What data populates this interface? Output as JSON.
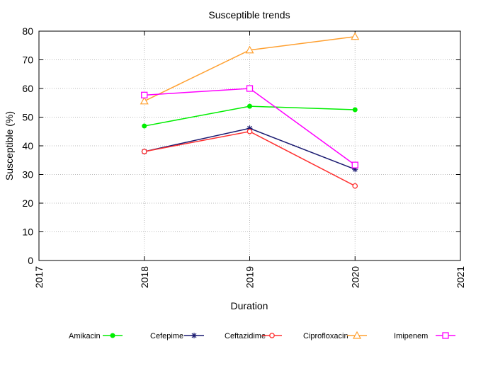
{
  "chart_data": {
    "type": "line",
    "title": "Susceptible trends",
    "xlabel": "Duration",
    "ylabel": "Susceptible (%)",
    "xlim": [
      2017,
      2021
    ],
    "ylim": [
      0,
      80
    ],
    "xticks": [
      "2017",
      "2018",
      "2019",
      "2020",
      "2021"
    ],
    "yticks": [
      "0",
      "10",
      "20",
      "30",
      "40",
      "50",
      "60",
      "70",
      "80"
    ],
    "grid": true,
    "legend_position": "bottom",
    "x": [
      2018,
      2019,
      2020
    ],
    "series": [
      {
        "name": "Amikacin",
        "values": [
          46.9,
          53.8,
          52.6
        ],
        "color": "#00ee00",
        "marker": "filled-circle"
      },
      {
        "name": "Cefepime",
        "values": [
          38.0,
          46.1,
          31.8
        ],
        "color": "#191970",
        "marker": "star"
      },
      {
        "name": "Ceftazidime",
        "values": [
          38.0,
          45.0,
          26.0
        ],
        "color": "#ff3030",
        "marker": "open-circle"
      },
      {
        "name": "Ciprofloxacin",
        "values": [
          55.6,
          73.4,
          78.1
        ],
        "color": "#ffa030",
        "marker": "open-triangle"
      },
      {
        "name": "Imipenem",
        "values": [
          57.7,
          60.0,
          33.3
        ],
        "color": "#ff00ff",
        "marker": "open-square"
      }
    ]
  }
}
